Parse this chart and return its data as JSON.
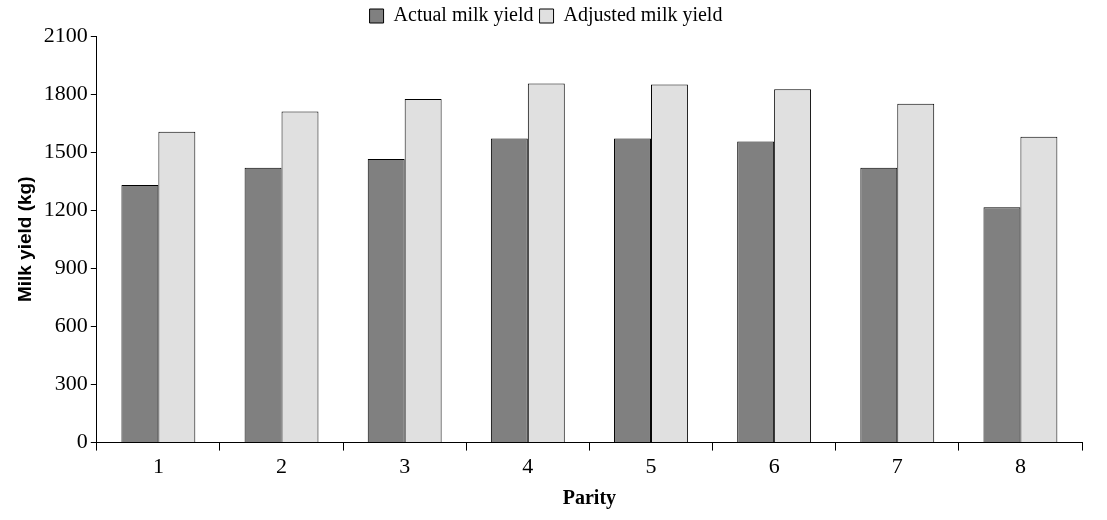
{
  "chart_data": {
    "type": "bar",
    "xlabel": "Parity",
    "ylabel": "Milk yield (kg)",
    "categories": [
      "1",
      "2",
      "3",
      "4",
      "5",
      "6",
      "7",
      "8"
    ],
    "series": [
      {
        "name": "Actual milk yield",
        "color": "#808080",
        "values": [
          1330,
          1420,
          1465,
          1570,
          1570,
          1555,
          1420,
          1215
        ]
      },
      {
        "name": "Adjusted milk yield",
        "color": "#e0e0e0",
        "values": [
          1605,
          1710,
          1775,
          1855,
          1850,
          1825,
          1750,
          1580
        ]
      }
    ],
    "ylim": [
      0,
      2100
    ],
    "yticks": [
      0,
      300,
      600,
      900,
      1200,
      1500,
      1800,
      2100
    ],
    "grid": false,
    "legend": "top"
  }
}
